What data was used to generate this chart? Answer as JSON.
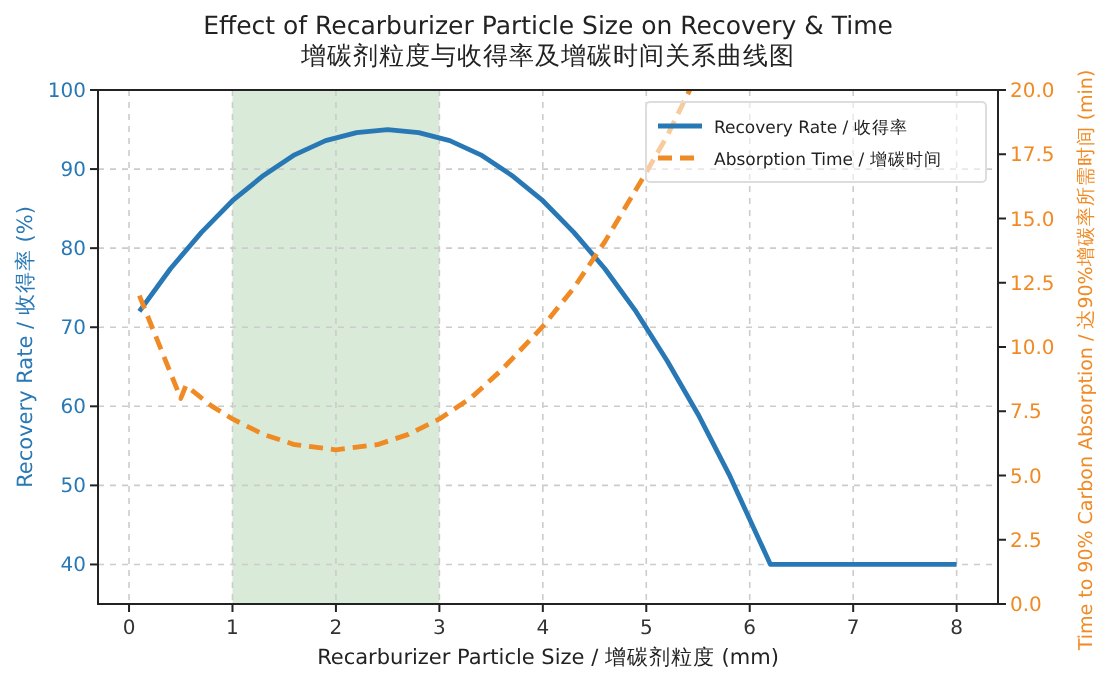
{
  "chart_data": {
    "type": "line",
    "title": "Effect of Recarburizer Particle Size on Recovery & Time",
    "subtitle": "增碳剂粒度与收得率及增碳时间关系曲线图",
    "xlabel": "Recarburizer Particle Size / 增碳剂粒度 (mm)",
    "ylabel": "Recovery Rate / 收得率 (%)",
    "y2label": "Time to 90% Carbon Absorption / 达90%增碳率所需时间 (min)",
    "xlim": [
      -0.3,
      8.4
    ],
    "xticks": [
      0,
      1,
      2,
      3,
      4,
      5,
      6,
      7,
      8
    ],
    "ylim": [
      35,
      100
    ],
    "yticks": [
      40,
      50,
      60,
      70,
      80,
      90,
      100
    ],
    "y2lim": [
      0,
      20
    ],
    "y2ticks": [
      {
        "value": 0,
        "label": "0.0"
      },
      {
        "value": 2.5,
        "label": "2.5"
      },
      {
        "value": 5,
        "label": "5.0"
      },
      {
        "value": 7.5,
        "label": "7.5"
      },
      {
        "value": 10,
        "label": "10.0"
      },
      {
        "value": 12.5,
        "label": "12.5"
      },
      {
        "value": 15,
        "label": "15.0"
      },
      {
        "value": 17.5,
        "label": "17.5"
      },
      {
        "value": 20,
        "label": "20.0"
      }
    ],
    "grid": true,
    "legend": "top right",
    "bands": [
      {
        "axis": "x",
        "from": 1,
        "to": 3,
        "color": "#d5e8d4"
      }
    ],
    "series": [
      {
        "name": "Recovery Rate / 收得率",
        "color": "#2878b5",
        "line_style": "solid",
        "x": [
          0.1,
          0.4,
          0.7,
          1.0,
          1.3,
          1.6,
          1.9,
          2.2,
          2.5,
          2.8,
          3.1,
          3.4,
          3.7,
          4.0,
          4.3,
          4.6,
          4.9,
          5.2,
          5.5,
          5.8,
          6.2,
          8.0
        ],
        "values": [
          72,
          77.4,
          82,
          86,
          89.2,
          91.8,
          93.6,
          94.6,
          95,
          94.6,
          93.6,
          91.8,
          89.2,
          86,
          82,
          77.4,
          72,
          65.8,
          59,
          51.4,
          40,
          40
        ]
      },
      {
        "name": "Absorption Time / 增碳时间",
        "color": "#f08a24",
        "line_style": "dashed",
        "axis": "y2",
        "x": [
          0.1,
          0.5,
          0.55,
          0.8,
          1.0,
          1.3,
          1.6,
          2.0,
          2.4,
          2.7,
          3.0,
          3.3,
          3.6,
          4.0,
          4.3,
          4.6,
          5.0,
          5.2,
          5.42
        ],
        "values": [
          12,
          8,
          8.5,
          7.7,
          7.2,
          6.6,
          6.2,
          6.0,
          6.2,
          6.6,
          7.2,
          8.0,
          9.1,
          10.8,
          12.3,
          14.1,
          16.8,
          18.2,
          20.0
        ]
      }
    ]
  }
}
